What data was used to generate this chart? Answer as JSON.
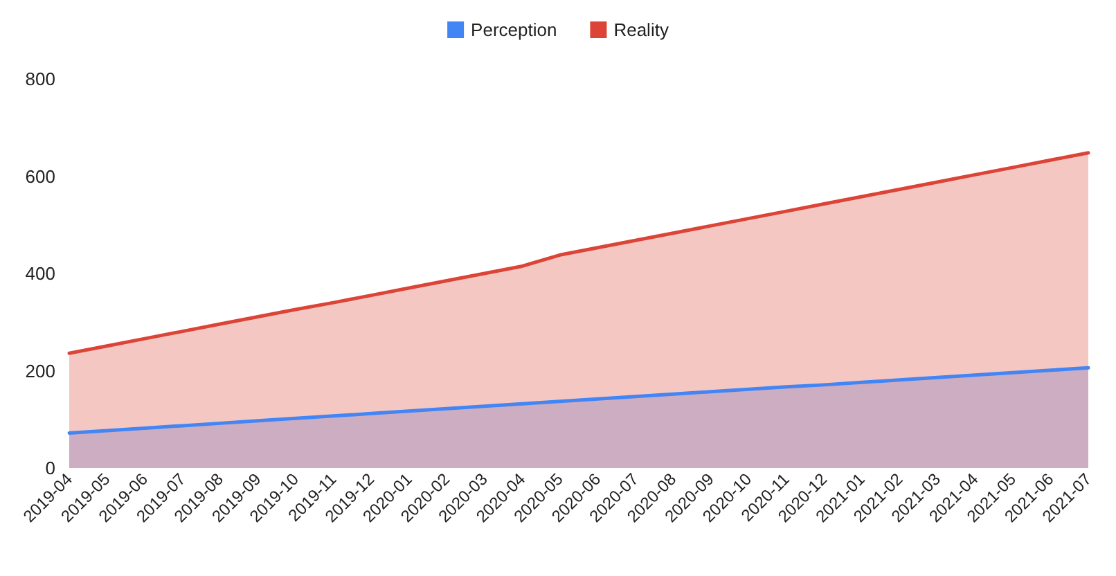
{
  "chart_data": {
    "type": "area",
    "categories": [
      "2019-04",
      "2019-05",
      "2019-06",
      "2019-07",
      "2019-08",
      "2019-09",
      "2019-10",
      "2019-11",
      "2019-12",
      "2020-01",
      "2020-02",
      "2020-03",
      "2020-04",
      "2020-05",
      "2020-06",
      "2020-07",
      "2020-08",
      "2020-09",
      "2020-10",
      "2020-11",
      "2020-12",
      "2021-01",
      "2021-02",
      "2021-03",
      "2021-04",
      "2021-05",
      "2021-06",
      "2021-07"
    ],
    "series": [
      {
        "name": "Perception",
        "color": "#4285f4",
        "values": [
          72,
          77,
          82,
          87,
          92,
          97,
          102,
          107,
          112,
          117,
          122,
          127,
          132,
          137,
          142,
          147,
          152,
          157,
          162,
          167,
          171,
          176,
          181,
          186,
          191,
          196,
          201,
          206
        ]
      },
      {
        "name": "Reality",
        "color": "#db4437",
        "values": [
          236,
          251,
          266,
          281,
          296,
          311,
          326,
          340,
          355,
          370,
          385,
          400,
          415,
          438,
          453,
          468,
          483,
          498,
          513,
          528,
          543,
          558,
          573,
          588,
          603,
          618,
          633,
          648
        ]
      }
    ],
    "ylim": [
      0,
      800
    ],
    "yticks": [
      0,
      200,
      400,
      600,
      800
    ],
    "legend": "top",
    "marker": "none",
    "grid": false
  }
}
